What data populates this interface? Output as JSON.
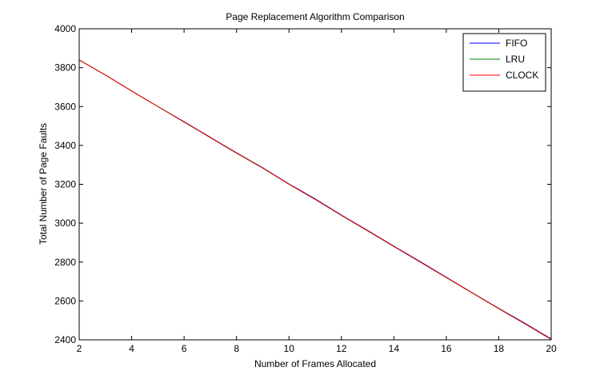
{
  "chart_data": {
    "type": "line",
    "title": "Page Replacement Algorithm Comparison",
    "xlabel": "Number of Frames Allocated",
    "ylabel": "Total Number of Page Faults",
    "xlim": [
      2,
      20
    ],
    "ylim": [
      2400,
      4000
    ],
    "xticks": [
      2,
      4,
      6,
      8,
      10,
      12,
      14,
      16,
      18,
      20
    ],
    "yticks": [
      2400,
      2600,
      2800,
      3000,
      3200,
      3400,
      3600,
      3800,
      4000
    ],
    "grid": false,
    "legend_position": "top-right",
    "x": [
      2,
      3,
      4,
      5,
      6,
      7,
      8,
      9,
      10,
      11,
      12,
      13,
      14,
      15,
      16,
      17,
      18,
      19,
      20
    ],
    "series": [
      {
        "name": "FIFO",
        "color": "#0000ff",
        "values": [
          3840,
          3762,
          3680,
          3600,
          3522,
          3442,
          3362,
          3285,
          3202,
          3125,
          3042,
          2963,
          2882,
          2803,
          2722,
          2641,
          2562,
          2485,
          2405
        ]
      },
      {
        "name": "LRU",
        "color": "#008000",
        "values": [
          3840,
          3762,
          3680,
          3600,
          3520,
          3440,
          3360,
          3283,
          3200,
          3122,
          3040,
          2960,
          2880,
          2800,
          2720,
          2640,
          2560,
          2482,
          2402
        ]
      },
      {
        "name": "CLOCK",
        "color": "#ff0000",
        "values": [
          3840,
          3762,
          3680,
          3600,
          3521,
          3441,
          3361,
          3284,
          3201,
          3123,
          3041,
          2961,
          2881,
          2801,
          2721,
          2641,
          2561,
          2483,
          2403
        ]
      }
    ]
  }
}
